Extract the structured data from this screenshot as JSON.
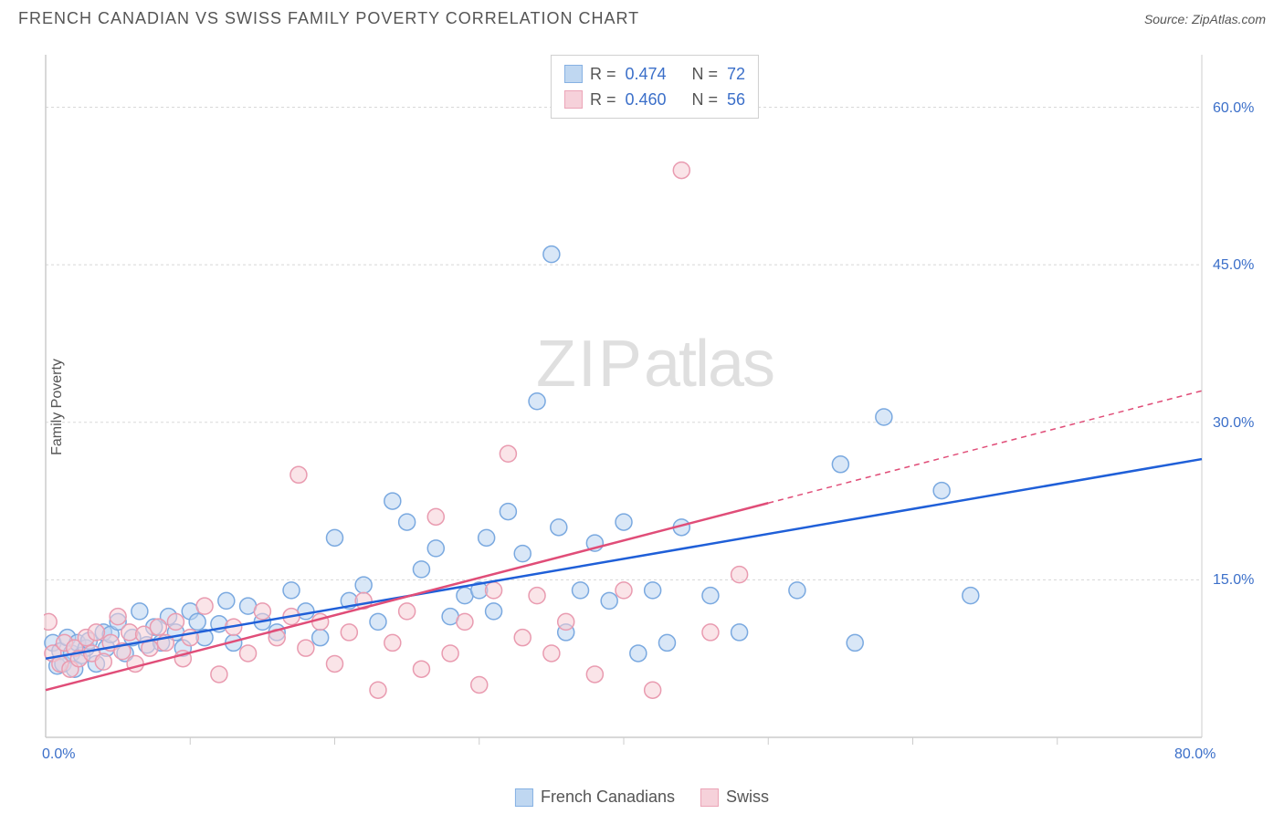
{
  "title": "FRENCH CANADIAN VS SWISS FAMILY POVERTY CORRELATION CHART",
  "source_prefix": "Source: ",
  "source_name": "ZipAtlas.com",
  "ylabel": "Family Poverty",
  "watermark_zip": "ZIP",
  "watermark_atlas": "atlas",
  "chart": {
    "type": "scatter",
    "xlim": [
      0,
      80
    ],
    "ylim": [
      0,
      65
    ],
    "x_origin_label": "0.0%",
    "x_max_label": "80.0%",
    "y_ticks": [
      15.0,
      30.0,
      45.0,
      60.0
    ],
    "y_tick_labels": [
      "15.0%",
      "30.0%",
      "45.0%",
      "60.0%"
    ],
    "x_minor_ticks": [
      10,
      20,
      30,
      40,
      50,
      60,
      70
    ],
    "grid_color": "#d8d8d8",
    "axis_color": "#cccccc",
    "tick_label_color": "#3b6fc9",
    "background_color": "#ffffff",
    "marker_radius": 9,
    "marker_stroke_width": 1.5,
    "series": [
      {
        "name": "French Canadians",
        "label": "French Canadians",
        "fill": "#b9d3f0",
        "stroke": "#7aa9e0",
        "line_color": "#1f5fd8",
        "R_label": "R =",
        "R": "0.474",
        "N_label": "N =",
        "N": "72",
        "trend": {
          "x1": 0,
          "y1": 7.5,
          "x2": 80,
          "y2": 26.5,
          "dash_from_x": null
        },
        "points": [
          [
            0.5,
            9
          ],
          [
            0.8,
            6.8
          ],
          [
            1,
            8.2
          ],
          [
            1.2,
            7
          ],
          [
            1.5,
            9.5
          ],
          [
            1.8,
            8
          ],
          [
            2,
            6.5
          ],
          [
            2.2,
            9
          ],
          [
            2.5,
            7.8
          ],
          [
            2.8,
            8.5
          ],
          [
            3,
            9.2
          ],
          [
            3.5,
            7
          ],
          [
            4,
            10
          ],
          [
            4.2,
            8.5
          ],
          [
            4.5,
            9.8
          ],
          [
            5,
            11
          ],
          [
            5.5,
            8
          ],
          [
            6,
            9.5
          ],
          [
            6.5,
            12
          ],
          [
            7,
            8.8
          ],
          [
            7.5,
            10.5
          ],
          [
            8,
            9
          ],
          [
            8.5,
            11.5
          ],
          [
            9,
            10
          ],
          [
            9.5,
            8.5
          ],
          [
            10,
            12
          ],
          [
            10.5,
            11
          ],
          [
            11,
            9.5
          ],
          [
            12,
            10.8
          ],
          [
            12.5,
            13
          ],
          [
            13,
            9
          ],
          [
            14,
            12.5
          ],
          [
            15,
            11
          ],
          [
            16,
            10
          ],
          [
            17,
            14
          ],
          [
            18,
            12
          ],
          [
            19,
            9.5
          ],
          [
            20,
            19
          ],
          [
            21,
            13
          ],
          [
            22,
            14.5
          ],
          [
            23,
            11
          ],
          [
            24,
            22.5
          ],
          [
            25,
            20.5
          ],
          [
            26,
            16
          ],
          [
            27,
            18
          ],
          [
            28,
            11.5
          ],
          [
            29,
            13.5
          ],
          [
            30,
            14
          ],
          [
            30.5,
            19
          ],
          [
            31,
            12
          ],
          [
            32,
            21.5
          ],
          [
            33,
            17.5
          ],
          [
            34,
            32
          ],
          [
            35,
            46
          ],
          [
            35.5,
            20
          ],
          [
            36,
            10
          ],
          [
            37,
            14
          ],
          [
            38,
            18.5
          ],
          [
            39,
            13
          ],
          [
            40,
            20.5
          ],
          [
            41,
            8
          ],
          [
            42,
            14
          ],
          [
            43,
            9
          ],
          [
            44,
            20
          ],
          [
            46,
            13.5
          ],
          [
            48,
            10
          ],
          [
            52,
            14
          ],
          [
            55,
            26
          ],
          [
            56,
            9
          ],
          [
            58,
            30.5
          ],
          [
            62,
            23.5
          ],
          [
            64,
            13.5
          ]
        ]
      },
      {
        "name": "Swiss",
        "label": "Swiss",
        "fill": "#f6cdd6",
        "stroke": "#e99bb0",
        "line_color": "#e04d78",
        "R_label": "R =",
        "R": "0.460",
        "N_label": "N =",
        "N": "56",
        "trend": {
          "x1": 0,
          "y1": 4.5,
          "x2": 80,
          "y2": 33,
          "dash_from_x": 50
        },
        "points": [
          [
            0.2,
            11
          ],
          [
            0.5,
            8
          ],
          [
            1,
            7
          ],
          [
            1.3,
            9
          ],
          [
            1.7,
            6.5
          ],
          [
            2,
            8.5
          ],
          [
            2.3,
            7.5
          ],
          [
            2.8,
            9.5
          ],
          [
            3.2,
            8
          ],
          [
            3.5,
            10
          ],
          [
            4,
            7.2
          ],
          [
            4.5,
            9
          ],
          [
            5,
            11.5
          ],
          [
            5.3,
            8.2
          ],
          [
            5.8,
            10
          ],
          [
            6.2,
            7
          ],
          [
            6.8,
            9.8
          ],
          [
            7.2,
            8.5
          ],
          [
            7.8,
            10.5
          ],
          [
            8.3,
            9
          ],
          [
            9,
            11
          ],
          [
            9.5,
            7.5
          ],
          [
            10,
            9.5
          ],
          [
            11,
            12.5
          ],
          [
            12,
            6
          ],
          [
            13,
            10.5
          ],
          [
            14,
            8
          ],
          [
            15,
            12
          ],
          [
            16,
            9.5
          ],
          [
            17,
            11.5
          ],
          [
            17.5,
            25
          ],
          [
            18,
            8.5
          ],
          [
            19,
            11
          ],
          [
            20,
            7
          ],
          [
            21,
            10
          ],
          [
            22,
            13
          ],
          [
            23,
            4.5
          ],
          [
            24,
            9
          ],
          [
            25,
            12
          ],
          [
            26,
            6.5
          ],
          [
            27,
            21
          ],
          [
            28,
            8
          ],
          [
            29,
            11
          ],
          [
            30,
            5
          ],
          [
            31,
            14
          ],
          [
            32,
            27
          ],
          [
            33,
            9.5
          ],
          [
            34,
            13.5
          ],
          [
            35,
            8
          ],
          [
            36,
            11
          ],
          [
            38,
            6
          ],
          [
            40,
            14
          ],
          [
            42,
            4.5
          ],
          [
            44,
            54
          ],
          [
            46,
            10
          ],
          [
            48,
            15.5
          ]
        ]
      }
    ]
  },
  "bottom_legend": [
    {
      "label": "French Canadians",
      "fill": "#b9d3f0",
      "stroke": "#7aa9e0"
    },
    {
      "label": "Swiss",
      "fill": "#f6cdd6",
      "stroke": "#e99bb0"
    }
  ]
}
